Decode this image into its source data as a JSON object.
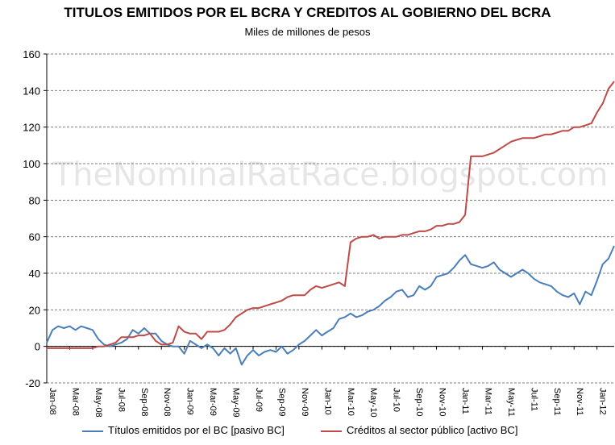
{
  "chart_data": {
    "type": "line",
    "title": "TITULOS EMITIDOS POR EL BCRA  Y CREDITOS AL GOBIERNO  DEL BCRA",
    "subtitle": "Miles de millones de pesos",
    "watermark": "TheNominalRatRace.blogspot.com",
    "ylim": [
      -20,
      160
    ],
    "yticks": [
      -20,
      0,
      20,
      40,
      60,
      80,
      100,
      120,
      140,
      160
    ],
    "grid": true,
    "legend_position": "bottom",
    "x_tick_labels": [
      "Jan-08",
      "Mar-08",
      "May-08",
      "Jul-08",
      "Sep-08",
      "Nov-08",
      "Jan-09",
      "Mar-09",
      "May-09",
      "Jul-09",
      "Sep-09",
      "Nov-09",
      "Jan-10",
      "Mar-10",
      "May-10",
      "Jul-10",
      "Sep-10",
      "Nov-10",
      "Jan-11",
      "Mar-11",
      "May-11",
      "Jul-11",
      "Sep-11",
      "Nov-11",
      "Jan-12"
    ],
    "x": [
      0,
      0.5,
      1,
      1.5,
      2,
      2.5,
      3,
      3.5,
      4,
      4.5,
      5,
      5.5,
      6,
      6.5,
      7,
      7.5,
      8,
      8.5,
      9,
      9.5,
      10,
      10.5,
      11,
      11.5,
      12,
      12.5,
      13,
      13.5,
      14,
      14.5,
      15,
      15.5,
      16,
      16.5,
      17,
      17.5,
      18,
      18.5,
      19,
      19.5,
      20,
      20.5,
      21,
      21.5,
      22,
      22.5,
      23,
      23.5,
      24,
      24.5,
      25,
      25.5,
      26,
      26.5,
      27,
      27.5,
      28,
      28.5,
      29,
      29.5,
      30,
      30.5,
      31,
      31.5,
      32,
      32.5,
      33,
      33.5,
      34,
      34.5,
      35,
      35.5,
      36,
      36.5,
      37,
      37.5,
      38,
      38.5,
      39,
      39.5,
      40,
      40.5,
      41,
      41.5,
      42,
      42.5,
      43,
      43.5,
      44,
      44.5,
      45,
      45.5,
      46,
      46.5,
      47,
      47.5,
      48,
      48.5,
      49,
      49.5
    ],
    "series": [
      {
        "name": "Títulos emitidos por el BC [pasivo BC]",
        "color": "#4a7ebb",
        "values": [
          2,
          9,
          11,
          10,
          11,
          9,
          11,
          10,
          9,
          4,
          1,
          0,
          1,
          2,
          4,
          9,
          7,
          10,
          7,
          7,
          3,
          1,
          0,
          0,
          -4,
          3,
          1,
          -1,
          1,
          -1,
          -5,
          -1,
          -4,
          -1,
          -10,
          -5,
          -2,
          -5,
          -3,
          -2,
          -3,
          0,
          -4,
          -2,
          1,
          3,
          6,
          9,
          6,
          8,
          10,
          15,
          16,
          18,
          16,
          17,
          19,
          20,
          22,
          25,
          27,
          30,
          31,
          27,
          28,
          33,
          31,
          33,
          38,
          39,
          40,
          43,
          47,
          50,
          45,
          44,
          43,
          44,
          46,
          42,
          40,
          38,
          40,
          42,
          40,
          37,
          35,
          34,
          33,
          30,
          28,
          27,
          29,
          23,
          30,
          28,
          36,
          45,
          48,
          55
        ]
      },
      {
        "name": "Créditos al sector público [activo BC]",
        "color": "#be4b48",
        "values": [
          -1,
          -1,
          -1,
          -1,
          -1,
          -1,
          -1,
          -1,
          -1,
          0,
          0,
          1,
          2,
          5,
          5,
          5,
          6,
          6,
          7,
          3,
          1,
          1,
          2,
          11,
          8,
          7,
          7,
          4,
          8,
          8,
          8,
          9,
          12,
          16,
          18,
          20,
          21,
          21,
          22,
          23,
          24,
          25,
          27,
          28,
          28,
          28,
          31,
          33,
          32,
          33,
          34,
          35,
          33,
          57,
          59,
          60,
          60,
          61,
          59,
          60,
          60,
          60,
          61,
          61,
          62,
          63,
          63,
          64,
          66,
          66,
          67,
          67,
          68,
          72,
          104,
          104,
          104,
          105,
          106,
          108,
          110,
          112,
          113,
          114,
          114,
          114,
          115,
          116,
          116,
          117,
          118,
          118,
          120,
          120,
          121,
          122,
          128,
          133,
          141,
          145
        ]
      }
    ]
  }
}
